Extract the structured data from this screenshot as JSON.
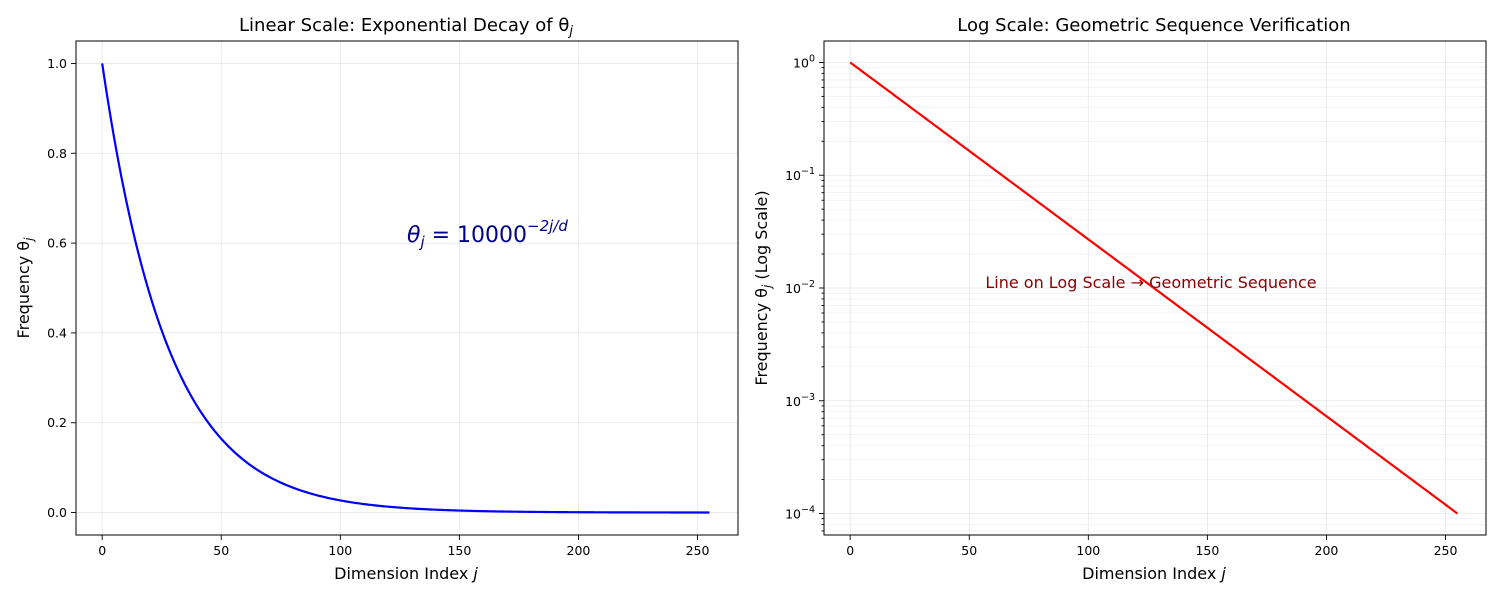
{
  "chart_data": [
    {
      "type": "line",
      "title": "Linear Scale: Exponential Decay of θ",
      "title_sub": "j",
      "xlabel": "Dimension Index",
      "xlabel_var": "j",
      "ylabel": "Frequency θ",
      "ylabel_sub": "j",
      "yscale": "linear",
      "xlim": [
        -11,
        267
      ],
      "ylim": [
        -0.05,
        1.05
      ],
      "x_ticks": [
        0,
        50,
        100,
        150,
        200,
        250
      ],
      "y_ticks": [
        0.0,
        0.2,
        0.4,
        0.6,
        0.8,
        1.0
      ],
      "y_tick_labels": [
        "0.0",
        "0.2",
        "0.4",
        "0.6",
        "0.8",
        "1.0"
      ],
      "grid": true,
      "series": [
        {
          "color": "#0000ff",
          "formula": "theta_j = 10000^(-2j/d)",
          "x_range": [
            0,
            255
          ],
          "y_start": 1.0,
          "y_end": 0.0001
        }
      ],
      "annotation": {
        "base": "θ",
        "sub": "j",
        "mid": " = 10000",
        "sup": "−2j/d",
        "color": "#00008b"
      }
    },
    {
      "type": "line",
      "title": "Log Scale: Geometric Sequence Verification",
      "xlabel": "Dimension Index",
      "xlabel_var": "j",
      "ylabel": "Frequency θ",
      "ylabel_sub": "j",
      "ylabel_suffix": " (Log Scale)",
      "yscale": "log",
      "xlim": [
        -11,
        267
      ],
      "ylim": [
        6.45e-05,
        1.55
      ],
      "x_ticks": [
        0,
        50,
        100,
        150,
        200,
        250
      ],
      "y_tick_exponents": [
        "0",
        "−1",
        "−2",
        "−3",
        "−4"
      ],
      "y_tick_values": [
        1,
        0.1,
        0.01,
        0.001,
        0.0001
      ],
      "grid": true,
      "series": [
        {
          "color": "#ff0000",
          "formula": "theta_j = 10000^(-2j/d)",
          "x_range": [
            0,
            255
          ],
          "y_start": 1.0,
          "y_end": 0.0001
        }
      ],
      "annotation": {
        "text": "Line on Log Scale → Geometric Sequence",
        "color": "#8b0000"
      }
    }
  ]
}
